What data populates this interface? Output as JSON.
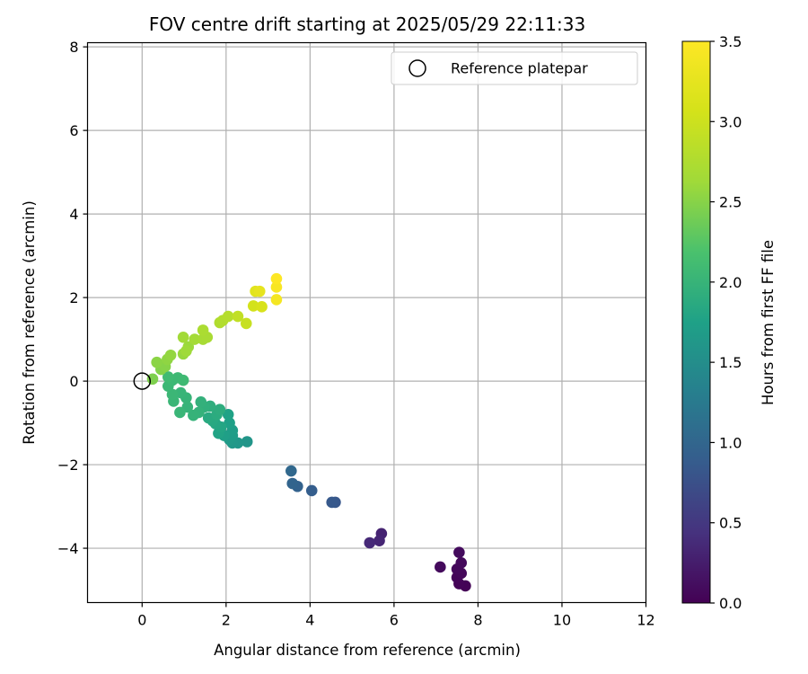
{
  "chart_data": {
    "type": "scatter",
    "title": "FOV centre drift starting at 2025/05/29 22:11:33",
    "xlabel": "Angular distance from reference (arcmin)",
    "ylabel": "Rotation from reference (arcmin)",
    "xlim": [
      -1.3,
      12
    ],
    "ylim": [
      -5.3,
      8.1
    ],
    "x_ticks": [
      0,
      2,
      4,
      6,
      8,
      10,
      12
    ],
    "y_ticks": [
      -4,
      -2,
      0,
      2,
      4,
      6,
      8
    ],
    "x_tick_labels": [
      "0",
      "2",
      "4",
      "6",
      "8",
      "10",
      "12"
    ],
    "y_tick_labels": [
      "−4",
      "−2",
      "0",
      "2",
      "4",
      "6",
      "8"
    ],
    "grid": true,
    "legend": {
      "placement": "top-right",
      "entries": [
        {
          "label": "Reference platepar",
          "marker": "open-circle"
        }
      ]
    },
    "reference_point": {
      "x": 0,
      "y": 0,
      "label": "Reference platepar"
    },
    "colorbar": {
      "label": "Hours from first FF file",
      "colormap": "viridis",
      "range": [
        0,
        3.5
      ],
      "ticks": [
        0,
        0.5,
        1,
        1.5,
        2,
        2.5,
        3,
        3.5
      ],
      "tick_labels": [
        "0.0",
        "0.5",
        "1.0",
        "1.5",
        "2.0",
        "2.5",
        "3.0",
        "3.5"
      ]
    },
    "columns": [
      "x",
      "y",
      "hours"
    ],
    "points": [
      [
        7.7,
        -4.9,
        0.02
      ],
      [
        7.55,
        -4.85,
        0.03
      ],
      [
        7.5,
        -4.7,
        0.04
      ],
      [
        7.6,
        -4.6,
        0.05
      ],
      [
        7.5,
        -4.5,
        0.06
      ],
      [
        7.6,
        -4.35,
        0.07
      ],
      [
        7.1,
        -4.45,
        0.08
      ],
      [
        7.55,
        -4.1,
        0.09
      ],
      [
        5.7,
        -3.65,
        0.3
      ],
      [
        5.65,
        -3.82,
        0.33
      ],
      [
        5.42,
        -3.87,
        0.36
      ],
      [
        4.6,
        -2.9,
        0.82
      ],
      [
        4.52,
        -2.9,
        0.84
      ],
      [
        4.04,
        -2.62,
        0.9
      ],
      [
        3.7,
        -2.52,
        0.95
      ],
      [
        3.58,
        -2.45,
        0.98
      ],
      [
        3.55,
        -2.15,
        1.02
      ],
      [
        2.5,
        -1.45,
        1.6
      ],
      [
        2.28,
        -1.48,
        1.62
      ],
      [
        2.15,
        -1.48,
        1.64
      ],
      [
        2.08,
        -1.4,
        1.66
      ],
      [
        2.15,
        -1.3,
        1.68
      ],
      [
        2.15,
        -1.18,
        1.7
      ],
      [
        1.95,
        -1.3,
        1.72
      ],
      [
        2.08,
        -1.0,
        1.74
      ],
      [
        2.05,
        -0.8,
        1.76
      ],
      [
        1.82,
        -1.25,
        1.78
      ],
      [
        1.88,
        -1.1,
        1.8
      ],
      [
        1.75,
        -1.02,
        1.82
      ],
      [
        1.68,
        -0.95,
        1.84
      ],
      [
        1.58,
        -0.88,
        1.86
      ],
      [
        1.78,
        -0.8,
        1.88
      ],
      [
        1.85,
        -0.68,
        1.9
      ],
      [
        1.62,
        -0.6,
        1.92
      ],
      [
        1.48,
        -0.62,
        1.94
      ],
      [
        1.4,
        -0.5,
        1.96
      ],
      [
        1.35,
        -0.75,
        1.97
      ],
      [
        1.22,
        -0.82,
        1.98
      ],
      [
        1.08,
        -0.62,
        1.99
      ],
      [
        1.05,
        -0.4,
        2.0
      ],
      [
        0.92,
        -0.28,
        2.01
      ],
      [
        0.9,
        -0.75,
        2.02
      ],
      [
        0.75,
        -0.48,
        2.03
      ],
      [
        0.72,
        -0.32,
        2.04
      ],
      [
        0.62,
        -0.12,
        2.05
      ],
      [
        0.72,
        0.02,
        2.06
      ],
      [
        0.85,
        0.08,
        2.07
      ],
      [
        0.98,
        0.02,
        2.08
      ],
      [
        0.62,
        0.1,
        2.09
      ],
      [
        0.25,
        0.05,
        2.45
      ],
      [
        0.45,
        0.28,
        2.48
      ],
      [
        0.55,
        0.35,
        2.5
      ],
      [
        0.35,
        0.45,
        2.52
      ],
      [
        0.6,
        0.52,
        2.54
      ],
      [
        0.68,
        0.62,
        2.56
      ],
      [
        0.98,
        0.65,
        2.58
      ],
      [
        1.1,
        0.82,
        2.6
      ],
      [
        1.05,
        0.72,
        2.62
      ],
      [
        0.98,
        1.05,
        2.64
      ],
      [
        1.25,
        1.0,
        2.66
      ],
      [
        1.45,
        1.0,
        2.68
      ],
      [
        1.55,
        1.05,
        2.7
      ],
      [
        1.45,
        1.22,
        2.72
      ],
      [
        1.85,
        1.4,
        2.76
      ],
      [
        1.92,
        1.45,
        2.78
      ],
      [
        2.05,
        1.55,
        2.8
      ],
      [
        2.28,
        1.55,
        2.9
      ],
      [
        2.48,
        1.38,
        2.95
      ],
      [
        2.65,
        1.8,
        3.05
      ],
      [
        2.85,
        1.78,
        3.1
      ],
      [
        2.7,
        2.15,
        3.2
      ],
      [
        2.8,
        2.15,
        3.25
      ],
      [
        3.2,
        1.95,
        3.4
      ],
      [
        3.2,
        2.25,
        3.45
      ],
      [
        3.2,
        2.45,
        3.5
      ]
    ]
  }
}
